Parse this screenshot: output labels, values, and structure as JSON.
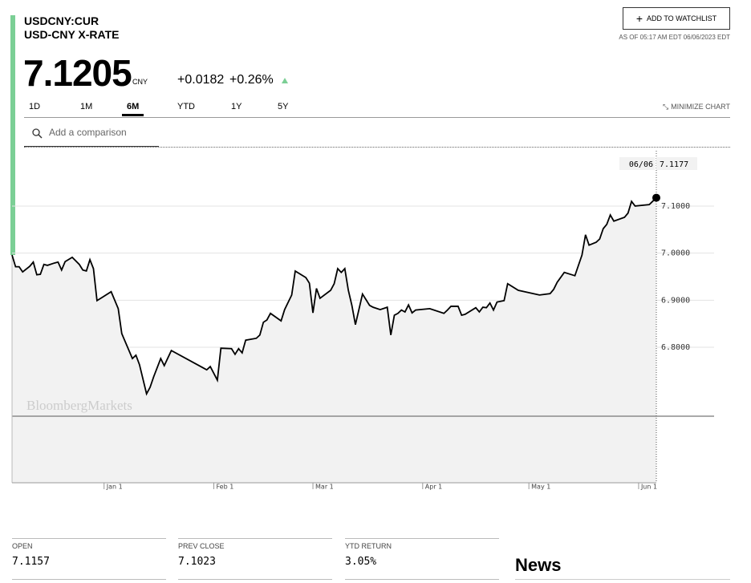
{
  "header": {
    "ticker": "USDCNY:CUR",
    "name": "USD-CNY X-RATE",
    "price": "7.1205",
    "currency": "CNY",
    "change": "+0.0182",
    "change_pct": "+0.26%",
    "watchlist": "ADD TO WATCHLIST",
    "as_of": "AS OF 05:17 AM EDT 06/06/2023 EDT"
  },
  "tabs": [
    "1D",
    "1M",
    "6M",
    "YTD",
    "1Y",
    "5Y"
  ],
  "active_tab": 2,
  "minimize": "MINIMIZE CHART",
  "comparison_placeholder": "Add a comparison",
  "watermark": "BloombergMarkets",
  "chart_data": {
    "type": "line",
    "color": "#000000",
    "x": [
      "12/06",
      "12/07",
      "12/08",
      "12/09",
      "12/11",
      "12/12",
      "12/13",
      "12/14",
      "12/15",
      "12/16",
      "12/18",
      "12/19",
      "12/20",
      "12/21",
      "12/23",
      "12/25",
      "12/26",
      "12/27",
      "12/28",
      "12/29",
      "12/30",
      "01/03",
      "01/05",
      "01/06",
      "01/09",
      "01/10",
      "01/11",
      "01/13",
      "01/14",
      "01/15",
      "01/17",
      "01/18",
      "01/20",
      "01/30",
      "01/31",
      "02/02",
      "02/03",
      "02/06",
      "02/07",
      "02/08",
      "02/09",
      "02/10",
      "02/13",
      "02/14",
      "02/15",
      "02/16",
      "02/17",
      "02/20",
      "02/21",
      "02/23",
      "02/24",
      "02/27",
      "02/28",
      "03/01",
      "03/02",
      "03/03",
      "03/06",
      "03/07",
      "03/08",
      "03/09",
      "03/10",
      "03/11",
      "03/12",
      "03/13",
      "03/15",
      "03/17",
      "03/18",
      "03/20",
      "03/22",
      "03/23",
      "03/24",
      "03/25",
      "03/26",
      "03/27",
      "03/28",
      "03/29",
      "03/30",
      "04/03",
      "04/07",
      "04/08",
      "04/09",
      "04/11",
      "04/12",
      "04/13",
      "04/16",
      "04/17",
      "04/18",
      "04/19",
      "04/20",
      "04/21",
      "04/22",
      "04/24",
      "04/25",
      "04/28",
      "05/04",
      "05/07",
      "05/08",
      "05/09",
      "05/11",
      "05/14",
      "05/15",
      "05/16",
      "05/17",
      "05/18",
      "05/20",
      "05/21",
      "05/22",
      "05/23",
      "05/24",
      "05/25",
      "05/28",
      "05/29",
      "05/30",
      "05/31",
      "06/04",
      "06/06"
    ],
    "values": [
      6.996,
      6.971,
      6.971,
      6.96,
      6.972,
      6.981,
      6.954,
      6.955,
      6.976,
      6.974,
      6.979,
      6.981,
      6.964,
      6.982,
      6.991,
      6.976,
      6.964,
      6.962,
      6.986,
      6.967,
      6.899,
      6.918,
      6.882,
      6.829,
      6.776,
      6.783,
      6.763,
      6.701,
      6.715,
      6.737,
      6.776,
      6.761,
      6.793,
      6.752,
      6.759,
      6.73,
      6.798,
      6.797,
      6.785,
      6.797,
      6.788,
      6.815,
      6.819,
      6.826,
      6.853,
      6.858,
      6.872,
      6.856,
      6.88,
      6.911,
      6.962,
      6.948,
      6.936,
      6.873,
      6.925,
      6.904,
      6.921,
      6.935,
      6.967,
      6.959,
      6.967,
      6.921,
      6.889,
      6.848,
      6.913,
      6.889,
      6.885,
      6.88,
      6.885,
      6.826,
      6.868,
      6.872,
      6.879,
      6.875,
      6.89,
      6.873,
      6.879,
      6.882,
      6.872,
      6.879,
      6.887,
      6.887,
      6.868,
      6.87,
      6.884,
      6.875,
      6.885,
      6.884,
      6.894,
      6.879,
      6.896,
      6.899,
      6.935,
      6.921,
      6.911,
      6.914,
      6.923,
      6.938,
      6.959,
      6.952,
      6.974,
      6.996,
      7.039,
      7.017,
      7.023,
      7.03,
      7.052,
      7.061,
      7.081,
      7.068,
      7.076,
      7.085,
      7.11,
      7.1,
      7.103,
      7.1177
    ],
    "xlim": [
      "12/06",
      "06/06"
    ],
    "xticks": [
      {
        "value": "01/01",
        "label": "Jan 1"
      },
      {
        "value": "02/01",
        "label": "Feb 1"
      },
      {
        "value": "03/01",
        "label": "Mar 1"
      },
      {
        "value": "04/01",
        "label": "Apr 1"
      },
      {
        "value": "05/01",
        "label": "May 1"
      },
      {
        "value": "06/01",
        "label": "Jun 1"
      }
    ],
    "ylim": [
      6.512,
      7.2175
    ],
    "yticks": [
      {
        "value": 6.8,
        "label": "6.8000"
      },
      {
        "value": 6.9,
        "label": "6.9000"
      },
      {
        "value": 7.0,
        "label": "7.0000"
      },
      {
        "value": 7.1,
        "label": "7.1000"
      }
    ],
    "grid": true
  },
  "stats": [
    {
      "label": "OPEN",
      "value": "7.1157"
    },
    {
      "label": "PREV CLOSE",
      "value": "7.1023"
    },
    {
      "label": "YTD RETURN",
      "value": "3.05%"
    }
  ],
  "news_title": "News"
}
